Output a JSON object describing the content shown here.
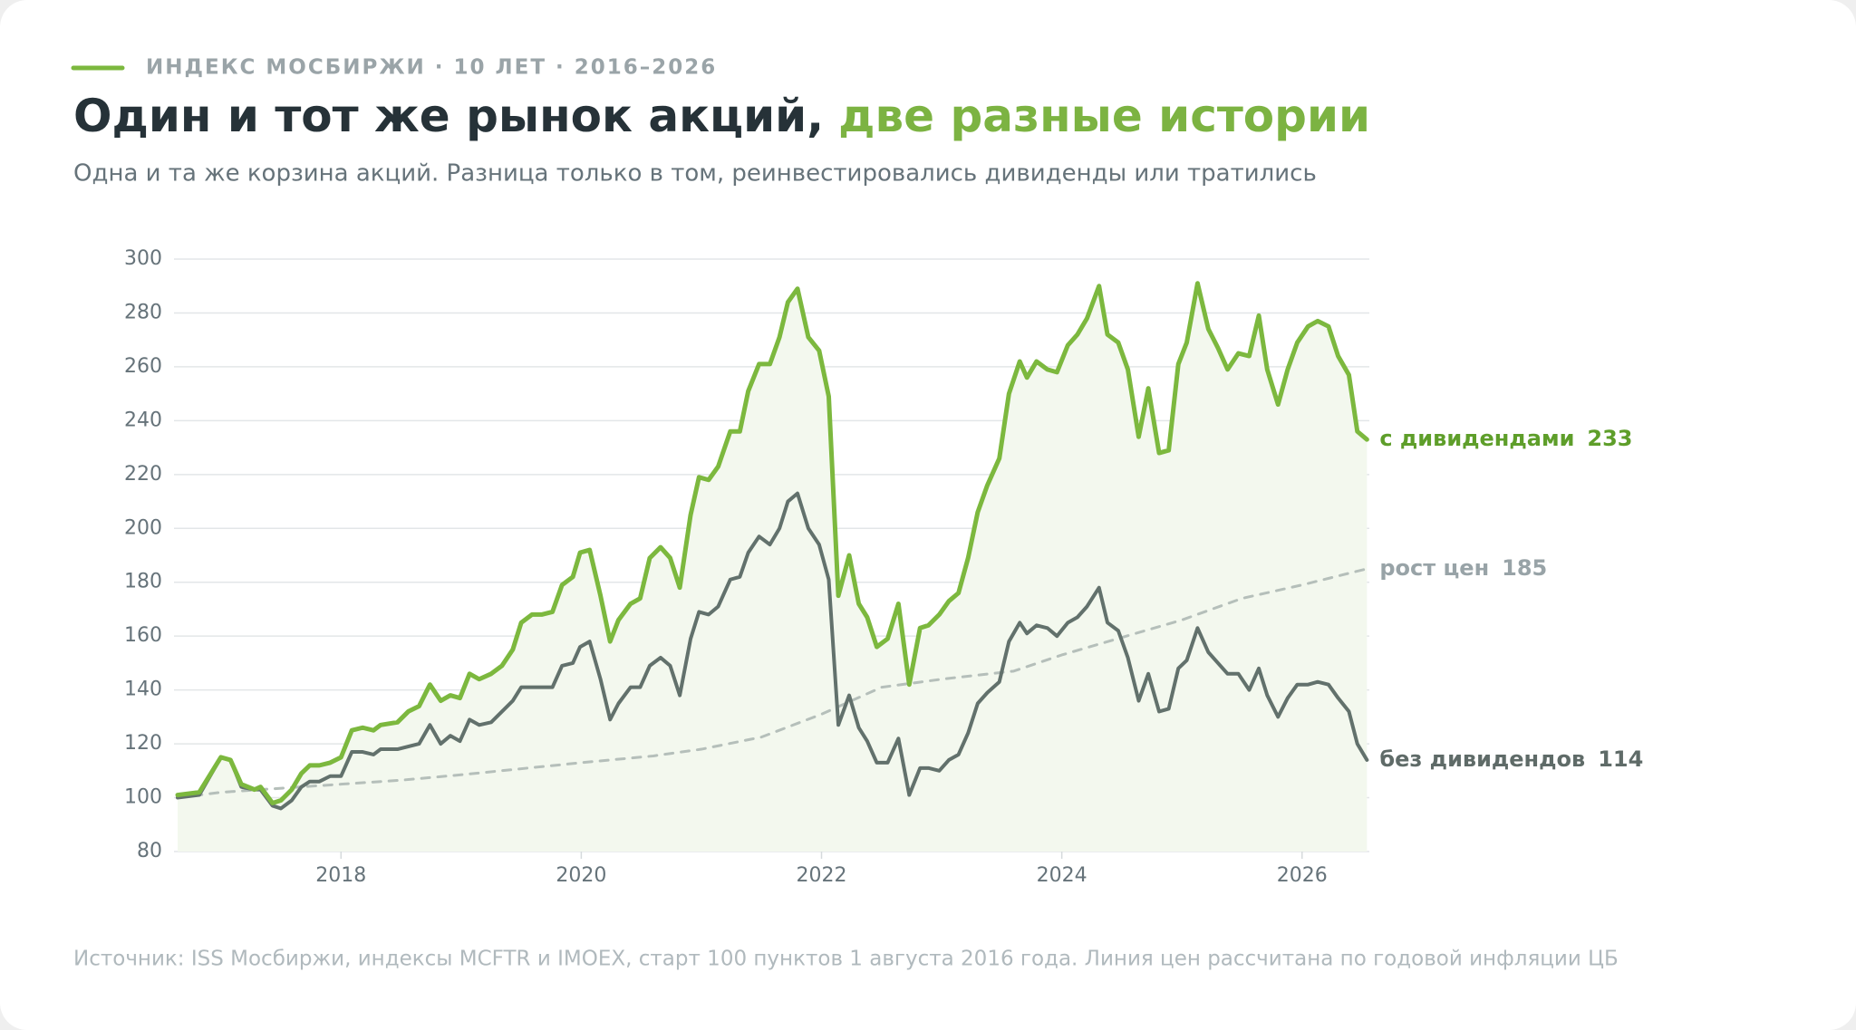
{
  "chart_data": {
    "type": "line",
    "eyebrow": "ИНДЕКС МОСБИРЖИ · 10 ЛЕТ · 2016–2026",
    "title": "Один и тот же рынок акций,",
    "title_highlight": "две разные истории",
    "subtitle": "Одна и та же корзина акций. Разница только в том, реинвестировались дивиденды или тратились",
    "source": "Источник: ISS Мосбиржи, индексы MCFTR и IMOEX, старт 100 пунктов 1 августа 2016 года. Линия цен рассчитана по годовой инфляции ЦБ",
    "x": [
      2016.64,
      2016.82,
      2017.0,
      2017.08,
      2017.17,
      2017.28,
      2017.33,
      2017.43,
      2017.5,
      2017.59,
      2017.67,
      2017.74,
      2017.82,
      2017.91,
      2018.0,
      2018.09,
      2018.18,
      2018.27,
      2018.33,
      2018.47,
      2018.56,
      2018.65,
      2018.74,
      2018.83,
      2018.91,
      2018.99,
      2019.07,
      2019.15,
      2019.25,
      2019.34,
      2019.43,
      2019.5,
      2019.59,
      2019.67,
      2019.76,
      2019.84,
      2019.93,
      2019.99,
      2020.07,
      2020.16,
      2020.24,
      2020.31,
      2020.41,
      2020.49,
      2020.57,
      2020.66,
      2020.74,
      2020.82,
      2020.91,
      2020.98,
      2021.06,
      2021.14,
      2021.24,
      2021.32,
      2021.39,
      2021.48,
      2021.57,
      2021.65,
      2021.72,
      2021.8,
      2021.89,
      2021.98,
      2022.06,
      2022.14,
      2022.23,
      2022.31,
      2022.38,
      2022.46,
      2022.55,
      2022.64,
      2022.73,
      2022.82,
      2022.89,
      2022.98,
      2023.06,
      2023.14,
      2023.22,
      2023.3,
      2023.38,
      2023.48,
      2023.56,
      2023.65,
      2023.71,
      2023.79,
      2023.88,
      2023.96,
      2024.05,
      2024.13,
      2024.21,
      2024.31,
      2024.38,
      2024.47,
      2024.55,
      2024.64,
      2024.72,
      2024.81,
      2024.89,
      2024.97,
      2025.04,
      2025.13,
      2025.22,
      2025.3,
      2025.38,
      2025.47,
      2025.56,
      2025.64,
      2025.71,
      2025.8,
      2025.88,
      2025.96,
      2026.05,
      2026.13,
      2026.22,
      2026.3,
      2026.39,
      2026.46,
      2026.54
    ],
    "series": [
      {
        "name": "с дивидендами",
        "color": "#7cb83e",
        "label_color": "#5e9e2a",
        "fill": "#f3f8ee",
        "values": [
          101,
          102,
          115,
          114,
          105,
          103,
          104,
          98,
          99,
          103,
          109,
          112,
          112,
          113,
          115,
          125,
          126,
          125,
          127,
          128,
          132,
          134,
          142,
          136,
          138,
          137,
          146,
          144,
          146,
          149,
          155,
          165,
          168,
          168,
          169,
          179,
          182,
          191,
          192,
          175,
          158,
          166,
          172,
          174,
          189,
          193,
          189,
          178,
          205,
          219,
          218,
          223,
          236,
          236,
          251,
          261,
          261,
          271,
          284,
          289,
          271,
          266,
          249,
          175,
          190,
          172,
          167,
          156,
          159,
          172,
          142,
          163,
          164,
          168,
          173,
          176,
          189,
          206,
          216,
          226,
          250,
          262,
          256,
          262,
          259,
          258,
          268,
          272,
          278,
          290,
          272,
          269,
          259,
          234,
          252,
          228,
          229,
          261,
          269,
          291,
          274,
          267,
          259,
          265,
          264,
          279,
          259,
          246,
          259,
          269,
          275,
          277,
          275,
          264,
          257,
          236,
          233
        ]
      },
      {
        "name": "без дивидендов",
        "color": "#62716c",
        "label_color": "#5f6b68",
        "values": [
          100,
          101,
          115,
          114,
          104,
          103,
          103,
          97,
          96,
          99,
          104,
          106,
          106,
          108,
          108,
          117,
          117,
          116,
          118,
          118,
          119,
          120,
          127,
          120,
          123,
          121,
          129,
          127,
          128,
          132,
          136,
          141,
          141,
          141,
          141,
          149,
          150,
          156,
          158,
          144,
          129,
          135,
          141,
          141,
          149,
          152,
          149,
          138,
          159,
          169,
          168,
          171,
          181,
          182,
          191,
          197,
          194,
          200,
          210,
          213,
          200,
          194,
          181,
          127,
          138,
          126,
          121,
          113,
          113,
          122,
          101,
          111,
          111,
          110,
          114,
          116,
          124,
          135,
          139,
          143,
          158,
          165,
          161,
          164,
          163,
          160,
          165,
          167,
          171,
          178,
          165,
          162,
          152,
          136,
          146,
          132,
          133,
          148,
          151,
          163,
          154,
          150,
          146,
          146,
          140,
          148,
          138,
          130,
          137,
          142,
          142,
          143,
          142,
          137,
          132,
          120,
          114
        ]
      },
      {
        "name": "рост цен",
        "color": "#b5bfba",
        "label_color": "#98a3a7",
        "dashed": true,
        "x": [
          2016.64,
          2017,
          2018,
          2018.5,
          2019,
          2020,
          2020.6,
          2021,
          2021.5,
          2022,
          2022.5,
          2023,
          2023.6,
          2024,
          2025,
          2025.5,
          2026,
          2026.54
        ],
        "values": [
          100,
          102,
          105,
          106.5,
          108.5,
          113,
          115.5,
          118,
          122.5,
          131,
          141,
          144,
          147,
          153,
          166,
          174,
          179,
          185
        ]
      }
    ],
    "xlim": [
      2016.64,
      2026.56
    ],
    "xticks": [
      2018,
      2020,
      2022,
      2024,
      2026
    ],
    "ylim": [
      80,
      300
    ],
    "yticks": [
      80,
      100,
      120,
      140,
      160,
      180,
      200,
      220,
      240,
      260,
      280,
      300
    ],
    "grid": true
  }
}
